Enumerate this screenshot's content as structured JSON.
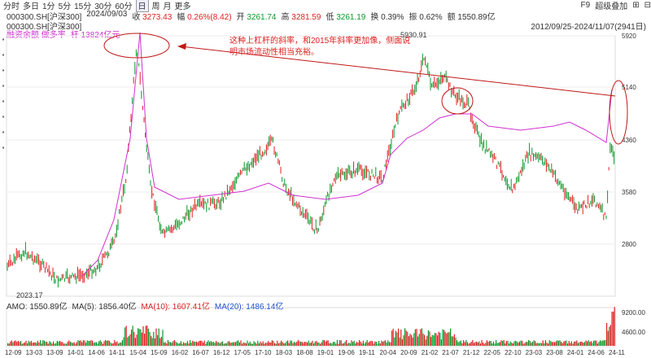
{
  "toolbar": {
    "periods": [
      "分时",
      "多日",
      "1分",
      "5分",
      "15分",
      "30分",
      "60分",
      "日",
      "周",
      "月",
      "更多"
    ],
    "active_period": "日",
    "right_items": [
      "F9",
      "超级叠加",
      "⊞",
      "⊟"
    ]
  },
  "info": {
    "code": "000300.SH[沪深300]",
    "date": "2024/09/03",
    "close_label": "收",
    "close_value": "3273.43",
    "change_label": "幅",
    "change_value": "0.26%(8.42)",
    "open_label": "开",
    "open_value": "3261.74",
    "high_label": "高",
    "high_value": "3281.59",
    "low_label": "低",
    "low_value": "3261.19",
    "turnover_label": "换",
    "turnover_value": "0.39%",
    "amp_label": "振",
    "amp_value": "0.62%",
    "amount_label": "额",
    "amount_value": "1550.89亿"
  },
  "subtitle": {
    "code2": "000300.SH[沪深300]",
    "margin_label": "融资余额 做多率",
    "margin_series": "杆 13824亿元"
  },
  "daterange": "2012/09/25-2024/11/07(2941日)",
  "annotation": {
    "text": "这种上杠杆的斜率，和2015年斜率更加像，侧面说明市场流动性相当充裕。"
  },
  "chart_labels": {
    "peak_2021": "5930.91",
    "low_2013": "2023.17"
  },
  "y_ticks": [
    "5920",
    "5140",
    "4360",
    "3580",
    "2800"
  ],
  "vol_ticks": [
    "9200.00",
    "4600.00"
  ],
  "x_ticks": [
    "12-09",
    "13-03",
    "13-09",
    "14-01",
    "14-06",
    "14-11",
    "15-04",
    "15-09",
    "16-02",
    "16-07",
    "16-12",
    "17-05",
    "17-10",
    "18-03",
    "18-08",
    "19-01",
    "19-06",
    "19-11",
    "20-04",
    "20-09",
    "21-02",
    "21-07",
    "21-12",
    "22-05",
    "22-10",
    "23-03",
    "23-08",
    "24-01",
    "24-06",
    "24-11"
  ],
  "volume_legend": {
    "amo": "AMO: 1550.89亿",
    "ma5": "MA(5): 1856.40亿",
    "ma10": "MA(10): 1607.41亿",
    "ma20": "MA(20): 1486.14亿"
  },
  "colors": {
    "up": "#e02020",
    "down": "#0a9a2a",
    "margin_line": "#d030d0",
    "annotation": "#c01818"
  }
}
